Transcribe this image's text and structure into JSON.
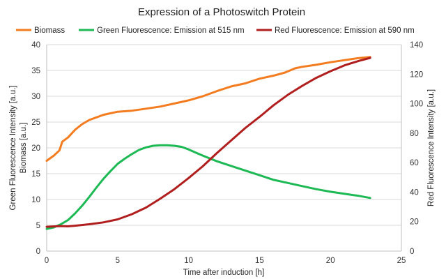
{
  "chart_data": {
    "type": "line",
    "title": "Expression of a Photoswitch Protein",
    "xlabel": "Time after induction [h]",
    "ylabel_left": [
      "Green Fluorescence Intensity [a.u.]",
      "Biomass [a.u.]"
    ],
    "ylabel_right": "Red Fluorescence Intensity [a.u.]",
    "xlim": [
      0,
      25
    ],
    "ylim_left": [
      0,
      40
    ],
    "ylim_right": [
      0,
      140
    ],
    "x_ticks": [
      "0",
      "5",
      "10",
      "15",
      "20",
      "25"
    ],
    "y_left_ticks": [
      "0",
      "5",
      "10",
      "15",
      "20",
      "25",
      "30",
      "35",
      "40"
    ],
    "y_right_ticks": [
      "0",
      "20",
      "40",
      "60",
      "80",
      "100",
      "120",
      "140"
    ],
    "grid": "horizontal",
    "legend_position": "top",
    "series": [
      {
        "name": "Biomass",
        "color": "#F47C20",
        "axis": "left",
        "x": [
          0,
          0.5,
          0.9,
          1.1,
          1.5,
          2,
          2.5,
          3,
          3.5,
          4,
          4.5,
          5,
          6,
          7,
          8,
          9,
          10,
          11,
          12,
          13,
          14,
          15,
          16,
          16.8,
          17.5,
          18,
          19,
          20,
          21,
          22,
          22.8
        ],
        "y": [
          17.5,
          18.5,
          19.5,
          21.2,
          22,
          23.5,
          24.6,
          25.4,
          25.9,
          26.4,
          26.7,
          27,
          27.2,
          27.6,
          28,
          28.6,
          29.2,
          30,
          31,
          31.9,
          32.5,
          33.4,
          34,
          34.6,
          35.4,
          35.7,
          36.1,
          36.6,
          37,
          37.4,
          37.6
        ]
      },
      {
        "name": "Green Fluorescence: Emission at 515 nm",
        "color": "#1DB954",
        "axis": "left",
        "x": [
          0,
          0.5,
          1,
          1.5,
          2,
          2.5,
          3,
          3.5,
          4,
          4.5,
          5,
          5.5,
          6,
          6.5,
          7,
          7.5,
          8,
          8.5,
          9,
          9.5,
          10,
          10.5,
          11,
          12,
          13,
          14,
          15,
          16,
          17,
          18,
          19,
          20,
          21,
          22,
          22.8
        ],
        "y": [
          4.3,
          4.6,
          5.2,
          6,
          7.3,
          8.8,
          10.5,
          12.3,
          14,
          15.5,
          16.9,
          17.9,
          18.8,
          19.6,
          20.1,
          20.4,
          20.5,
          20.5,
          20.4,
          20.2,
          19.7,
          19.1,
          18.5,
          17.4,
          16.5,
          15.6,
          14.7,
          13.8,
          13.2,
          12.6,
          12,
          11.5,
          11.1,
          10.7,
          10.3
        ]
      },
      {
        "name": "Red Fluorescence: Emission at 590 nm",
        "color": "#B01E1E",
        "axis": "right",
        "x": [
          0,
          1,
          1.5,
          2,
          3,
          4,
          5,
          6,
          7,
          8,
          9,
          10,
          11,
          12,
          13,
          14,
          15,
          16,
          17,
          18,
          19,
          20,
          21,
          22,
          22.8
        ],
        "y": [
          16.5,
          17,
          16.8,
          17.2,
          18.2,
          19.5,
          21.5,
          25,
          29.5,
          35.5,
          42,
          49.5,
          57.5,
          66.5,
          75,
          83.5,
          91,
          99,
          106,
          112,
          117.5,
          122,
          126,
          129,
          131
        ]
      }
    ]
  }
}
